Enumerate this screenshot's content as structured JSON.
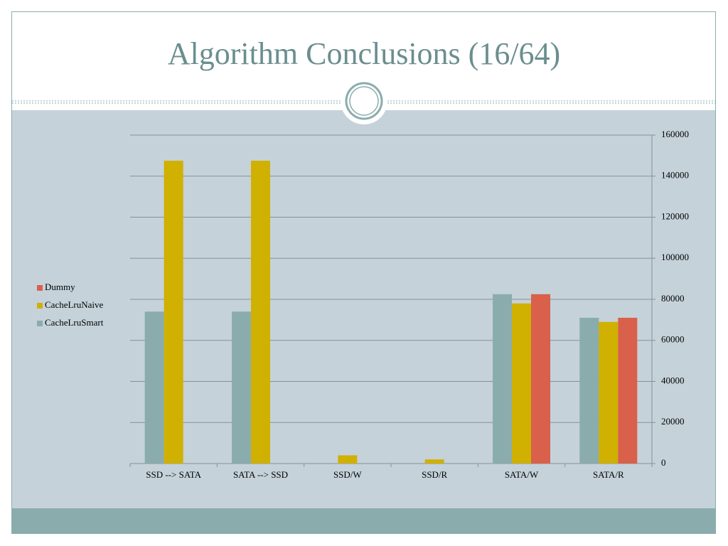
{
  "chart_data": {
    "type": "bar",
    "title": "Algorithm Conclusions (16/64)",
    "categories": [
      "SSD --> SATA",
      "SATA --> SSD",
      "SSD/W",
      "SSD/R",
      "SATA/W",
      "SATA/R"
    ],
    "series": [
      {
        "name": "CacheLruSmart",
        "color": "#8aacad",
        "values": [
          74000,
          74000,
          null,
          null,
          82500,
          71000
        ]
      },
      {
        "name": "CacheLruNaive",
        "color": "#d0b000",
        "values": [
          147500,
          147500,
          4000,
          2000,
          78000,
          69000
        ]
      },
      {
        "name": "Dummy",
        "color": "#d9604a",
        "values": [
          null,
          null,
          null,
          null,
          82500,
          71000
        ]
      }
    ],
    "ylim": [
      0,
      160000
    ],
    "yticks": [
      0,
      20000,
      40000,
      60000,
      80000,
      100000,
      120000,
      140000,
      160000
    ],
    "grid": true,
    "legend_position": "left",
    "y_axis_side": "right"
  }
}
